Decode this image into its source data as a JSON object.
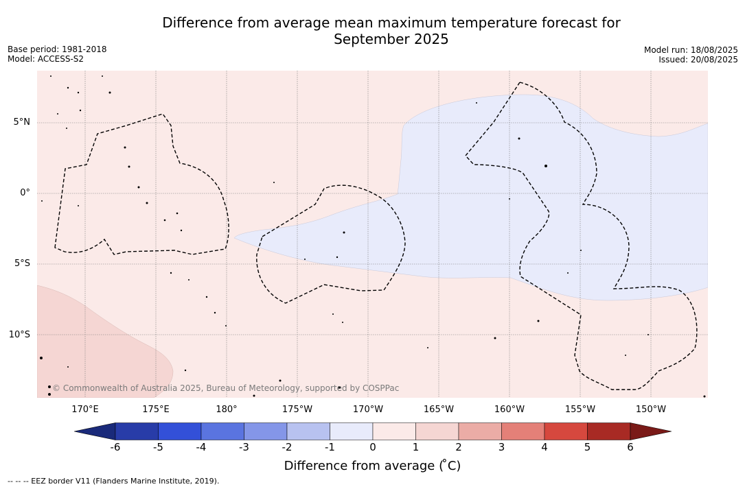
{
  "header": {
    "title_line1": "Difference from average mean maximum temperature forecast for",
    "title_line2": "September 2025",
    "base_period": "Base period: 1981-2018",
    "model": "Model: ACCESS-S2",
    "model_run": "Model run: 18/08/2025",
    "issued": "Issued: 20/08/2025"
  },
  "map": {
    "lon_labels": [
      "170°E",
      "175°E",
      "180°",
      "175°W",
      "170°W",
      "165°W",
      "160°W",
      "155°W",
      "150°W"
    ],
    "lat_labels": [
      "5°N",
      "0°",
      "5°S",
      "10°S"
    ],
    "copyright": "© Commonwealth of Australia 2025, Bureau of Meteorology, supported by COSPPac",
    "regions": [
      {
        "category": "0 to 1",
        "color": "#fbeae8"
      },
      {
        "category": "-1 to 0",
        "color": "#e8ebfb"
      },
      {
        "category": "1 to 2",
        "color": "#f5d6d3"
      }
    ],
    "eez_line_color": "#000000"
  },
  "colorbar": {
    "ticks": [
      "-6",
      "-5",
      "-4",
      "-3",
      "-2",
      "-1",
      "0",
      "1",
      "2",
      "3",
      "4",
      "5",
      "6"
    ],
    "colors": [
      "#283ca8",
      "#3350d8",
      "#5a74e0",
      "#8496e8",
      "#b8c2f0",
      "#e8ebfb",
      "#fbeae8",
      "#f5d6d3",
      "#ebaca6",
      "#e48078",
      "#d6483e",
      "#a82a24"
    ],
    "under_color": "#1a2a7a",
    "over_color": "#7a1a18",
    "label": "Difference from average ( ̊C)"
  },
  "footer": {
    "legend_text": "--  --  -- EEZ border V11 (Flanders Marine Institute, 2019)."
  }
}
